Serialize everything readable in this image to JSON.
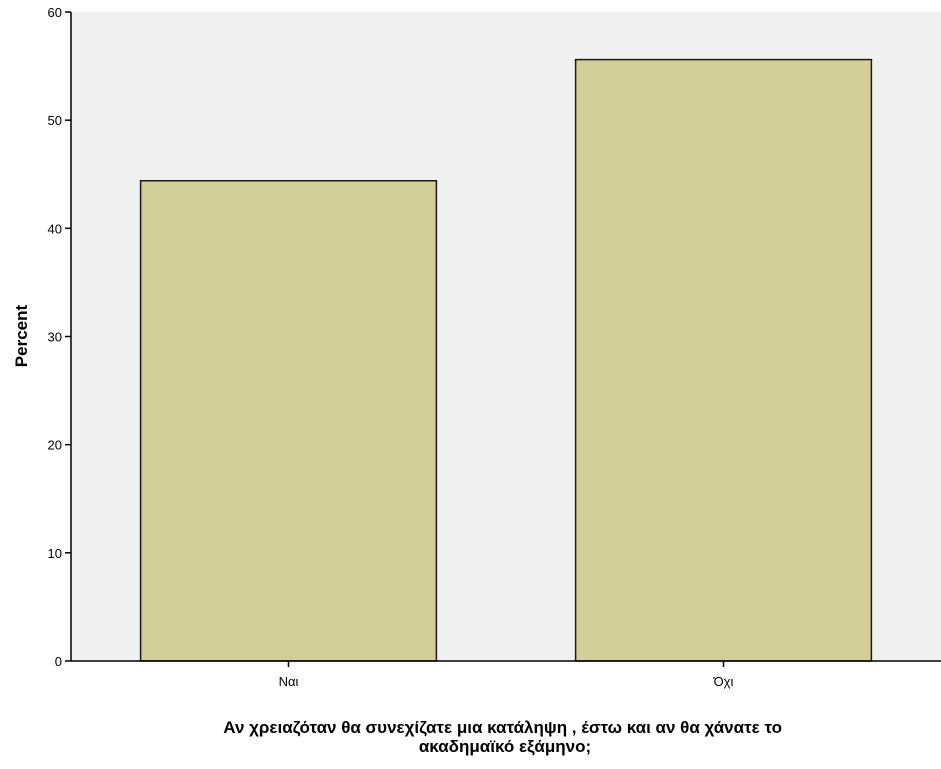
{
  "chart_data": {
    "type": "bar",
    "categories": [
      "Ναι",
      "Όχι"
    ],
    "values": [
      44.4,
      55.6
    ],
    "title": "",
    "ylabel": "Percent",
    "xlabel_lines": [
      "Αν χρειαζόταν θα συνεχίζατε μια κατάληψη  , έστω και αν θα  χάνατε το",
      "ακαδημαϊκό εξάμηνο;"
    ],
    "ylim": [
      0,
      60
    ],
    "yticks": [
      0,
      10,
      20,
      30,
      40,
      50,
      60
    ],
    "grid": false,
    "legend": "none",
    "colors": {
      "bar_fill": "#d3ce98",
      "bar_stroke": "#1a1a1a",
      "plot_background": "#f0f0f0",
      "axis": "#000000"
    }
  }
}
